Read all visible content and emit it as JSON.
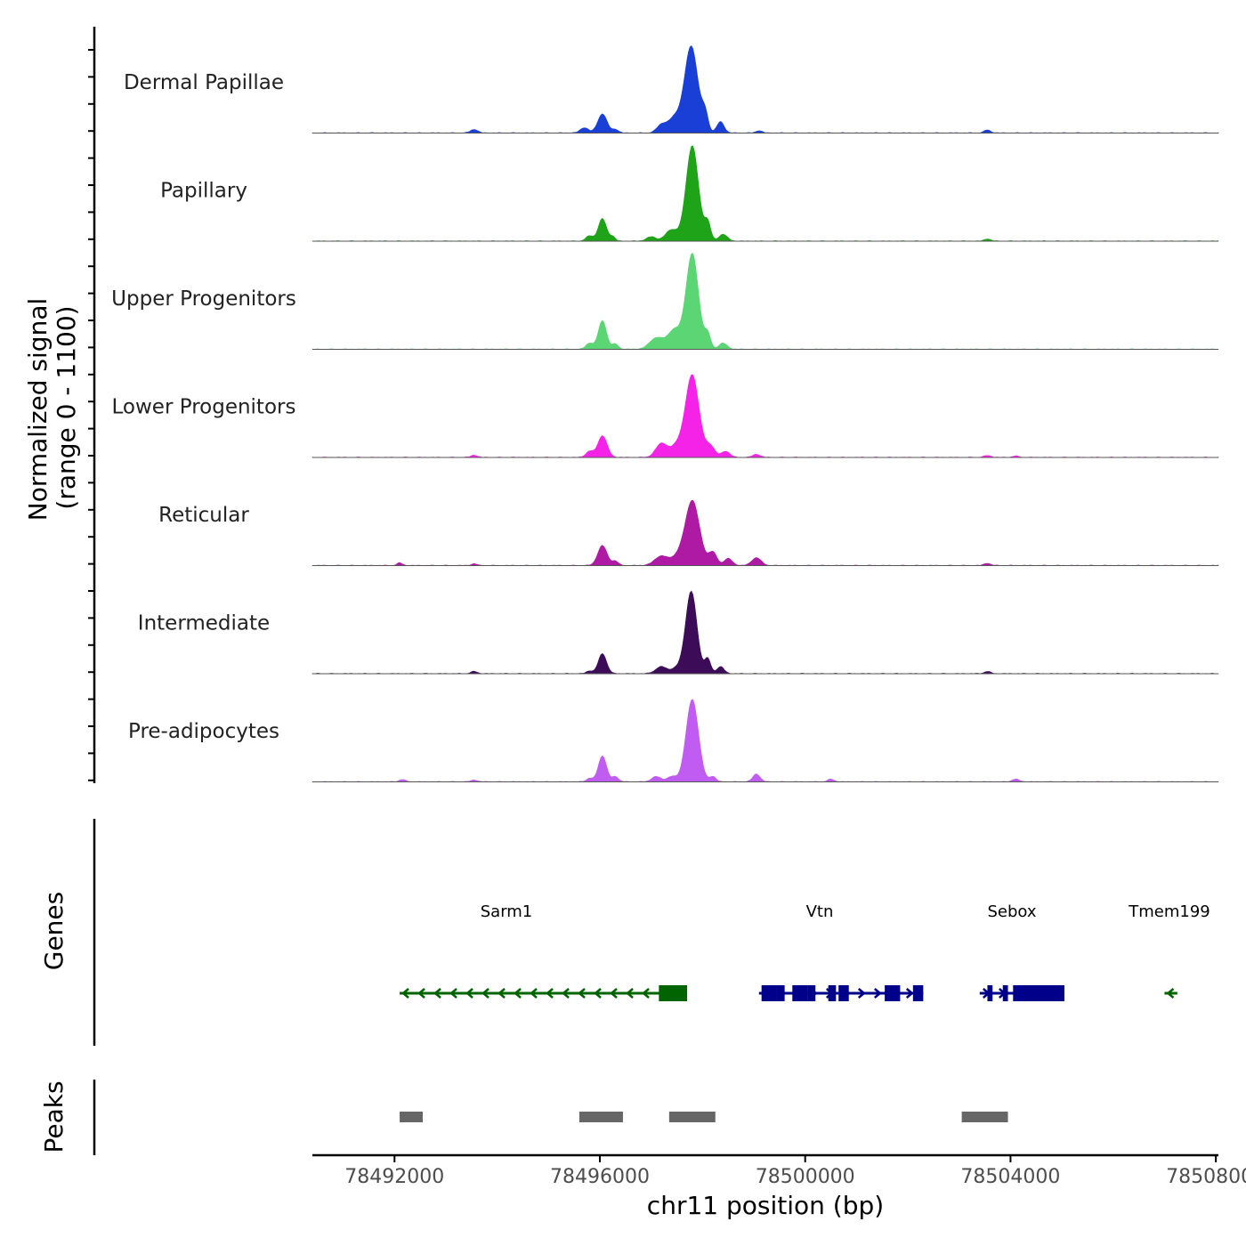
{
  "chart_data": {
    "type": "area",
    "title": "",
    "chromosome": "chr11",
    "xlabel": "chr11 position (bp)",
    "x_range": [
      78490400,
      78508050
    ],
    "x_ticks": [
      78492000,
      78496000,
      78500000,
      78504000,
      78508000
    ],
    "x_tick_labels": [
      "78492000",
      "78496000",
      "78500000",
      "78504000",
      "78508000"
    ],
    "signal_panel": {
      "ylabel": "Normalized signal",
      "ylabel_range": "(range 0 - 1100)",
      "ylim": [
        0,
        1100
      ],
      "tracks": [
        {
          "name": "Dermal Papillae",
          "color": "#1A3FD6",
          "peaks": [
            {
              "center": 78493550,
              "width": 70,
              "height": 40
            },
            {
              "center": 78495700,
              "width": 80,
              "height": 60
            },
            {
              "center": 78496050,
              "width": 90,
              "height": 220
            },
            {
              "center": 78496300,
              "width": 60,
              "height": 40
            },
            {
              "center": 78497200,
              "width": 90,
              "height": 90
            },
            {
              "center": 78497450,
              "width": 120,
              "height": 170
            },
            {
              "center": 78497780,
              "width": 130,
              "height": 1000
            },
            {
              "center": 78498050,
              "width": 60,
              "height": 200
            },
            {
              "center": 78498350,
              "width": 70,
              "height": 130
            },
            {
              "center": 78499100,
              "width": 60,
              "height": 25
            },
            {
              "center": 78503550,
              "width": 60,
              "height": 35
            }
          ]
        },
        {
          "name": "Papillary",
          "color": "#1FA318",
          "peaks": [
            {
              "center": 78495800,
              "width": 70,
              "height": 60
            },
            {
              "center": 78496050,
              "width": 80,
              "height": 260
            },
            {
              "center": 78496250,
              "width": 50,
              "height": 50
            },
            {
              "center": 78497000,
              "width": 90,
              "height": 50
            },
            {
              "center": 78497400,
              "width": 120,
              "height": 130
            },
            {
              "center": 78497800,
              "width": 120,
              "height": 1100
            },
            {
              "center": 78498100,
              "width": 60,
              "height": 210
            },
            {
              "center": 78498400,
              "width": 80,
              "height": 80
            },
            {
              "center": 78503550,
              "width": 60,
              "height": 25
            }
          ]
        },
        {
          "name": "Upper Progenitors",
          "color": "#5CD675",
          "peaks": [
            {
              "center": 78495800,
              "width": 70,
              "height": 70
            },
            {
              "center": 78496050,
              "width": 80,
              "height": 330
            },
            {
              "center": 78496300,
              "width": 60,
              "height": 60
            },
            {
              "center": 78497100,
              "width": 130,
              "height": 130
            },
            {
              "center": 78497450,
              "width": 130,
              "height": 220
            },
            {
              "center": 78497800,
              "width": 120,
              "height": 1100
            },
            {
              "center": 78498100,
              "width": 60,
              "height": 170
            },
            {
              "center": 78498400,
              "width": 80,
              "height": 70
            }
          ]
        },
        {
          "name": "Lower Progenitors",
          "color": "#F522E8",
          "peaks": [
            {
              "center": 78493550,
              "width": 60,
              "height": 25
            },
            {
              "center": 78495800,
              "width": 70,
              "height": 70
            },
            {
              "center": 78496050,
              "width": 90,
              "height": 250
            },
            {
              "center": 78497200,
              "width": 110,
              "height": 160
            },
            {
              "center": 78497500,
              "width": 120,
              "height": 130
            },
            {
              "center": 78497800,
              "width": 130,
              "height": 950
            },
            {
              "center": 78498150,
              "width": 90,
              "height": 130
            },
            {
              "center": 78498450,
              "width": 80,
              "height": 70
            },
            {
              "center": 78499050,
              "width": 70,
              "height": 35
            },
            {
              "center": 78503550,
              "width": 70,
              "height": 20
            },
            {
              "center": 78504100,
              "width": 60,
              "height": 15
            }
          ]
        },
        {
          "name": "Reticular",
          "color": "#AE1AA3",
          "peaks": [
            {
              "center": 78492100,
              "width": 50,
              "height": 30
            },
            {
              "center": 78493550,
              "width": 50,
              "height": 20
            },
            {
              "center": 78496050,
              "width": 90,
              "height": 230
            },
            {
              "center": 78496300,
              "width": 60,
              "height": 50
            },
            {
              "center": 78497200,
              "width": 130,
              "height": 110
            },
            {
              "center": 78497500,
              "width": 110,
              "height": 80
            },
            {
              "center": 78497800,
              "width": 140,
              "height": 750
            },
            {
              "center": 78498200,
              "width": 80,
              "height": 150
            },
            {
              "center": 78498500,
              "width": 80,
              "height": 80
            },
            {
              "center": 78499050,
              "width": 90,
              "height": 90
            },
            {
              "center": 78503550,
              "width": 60,
              "height": 25
            }
          ]
        },
        {
          "name": "Intermediate",
          "color": "#3C0C58",
          "peaks": [
            {
              "center": 78493550,
              "width": 60,
              "height": 25
            },
            {
              "center": 78495800,
              "width": 60,
              "height": 30
            },
            {
              "center": 78496050,
              "width": 80,
              "height": 230
            },
            {
              "center": 78497200,
              "width": 110,
              "height": 80
            },
            {
              "center": 78497500,
              "width": 100,
              "height": 60
            },
            {
              "center": 78497780,
              "width": 110,
              "height": 950
            },
            {
              "center": 78498100,
              "width": 60,
              "height": 170
            },
            {
              "center": 78498350,
              "width": 70,
              "height": 80
            },
            {
              "center": 78503550,
              "width": 60,
              "height": 25
            }
          ]
        },
        {
          "name": "Pre-adipocytes",
          "color": "#C15CF2",
          "peaks": [
            {
              "center": 78492150,
              "width": 60,
              "height": 25
            },
            {
              "center": 78493550,
              "width": 60,
              "height": 20
            },
            {
              "center": 78495800,
              "width": 60,
              "height": 40
            },
            {
              "center": 78496050,
              "width": 80,
              "height": 300
            },
            {
              "center": 78496300,
              "width": 60,
              "height": 60
            },
            {
              "center": 78497100,
              "width": 90,
              "height": 60
            },
            {
              "center": 78497400,
              "width": 90,
              "height": 60
            },
            {
              "center": 78497800,
              "width": 120,
              "height": 950
            },
            {
              "center": 78498200,
              "width": 60,
              "height": 60
            },
            {
              "center": 78499050,
              "width": 70,
              "height": 90
            },
            {
              "center": 78500500,
              "width": 60,
              "height": 30
            },
            {
              "center": 78504100,
              "width": 70,
              "height": 30
            }
          ]
        }
      ]
    },
    "genes_panel": {
      "label": "Genes",
      "genes": [
        {
          "name": "Sarm1",
          "strand": "-",
          "color": "#006400",
          "start": 78492100,
          "end": 78497700,
          "exons": [
            [
              78497150,
              78497700
            ]
          ]
        },
        {
          "name": "Vtn",
          "strand": "+",
          "color": "#00008B",
          "start": 78499100,
          "end": 78502300,
          "exons": [
            [
              78499150,
              78499450
            ],
            [
              78499450,
              78499600
            ],
            [
              78499750,
              78500050
            ],
            [
              78500050,
              78500200
            ],
            [
              78500450,
              78500600
            ],
            [
              78500650,
              78500850
            ],
            [
              78501550,
              78501850
            ],
            [
              78502100,
              78502300
            ]
          ]
        },
        {
          "name": "Sebox",
          "strand": "+",
          "color": "#00008B",
          "start": 78503400,
          "end": 78505050,
          "exons": [
            [
              78503550,
              78503650
            ],
            [
              78503850,
              78503950
            ],
            [
              78504050,
              78505050
            ]
          ]
        },
        {
          "name": "Tmem199",
          "strand": "-",
          "color": "#006400",
          "start": 78507000,
          "end": 78507250,
          "exons": []
        }
      ]
    },
    "peaks_panel": {
      "label": "Peaks",
      "color": "#666666",
      "regions": [
        [
          78492100,
          78492550
        ],
        [
          78495600,
          78496450
        ],
        [
          78497350,
          78498250
        ],
        [
          78503050,
          78503950
        ]
      ]
    }
  }
}
